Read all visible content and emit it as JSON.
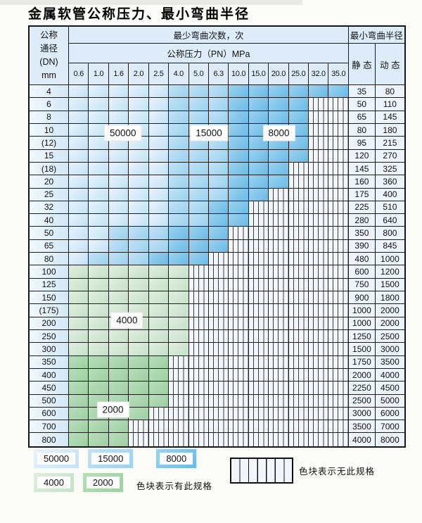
{
  "title": "金属软管公称压力、最小弯曲半径",
  "table": {
    "header": {
      "dn_lines": [
        "公称",
        "通径",
        "(DN)",
        "mm"
      ],
      "cycles_title": "最少弯曲次数，次",
      "pressure_title": "公称压力（PN）MPa",
      "pressure_cols": [
        "0.6",
        "1.0",
        "1.6",
        "2.0",
        "2.5",
        "4.0",
        "5.0",
        "6.3",
        "10.0",
        "15.0",
        "20.0",
        "25.0",
        "32.0",
        "35.0"
      ],
      "radius_title": "最小弯曲半径",
      "static_label": "静 态",
      "dynamic_label": "动 态"
    },
    "rows": [
      {
        "dn": "4",
        "blue": [
          5,
          3,
          6
        ],
        "static": "35",
        "dynamic": "80"
      },
      {
        "dn": "6",
        "blue": [
          5,
          3,
          4
        ],
        "static": "50",
        "dynamic": "110"
      },
      {
        "dn": "8",
        "blue": [
          5,
          3,
          4
        ],
        "static": "65",
        "dynamic": "145"
      },
      {
        "dn": "10",
        "blue": [
          5,
          3,
          4
        ],
        "static": "80",
        "dynamic": "180"
      },
      {
        "dn": "(12)",
        "blue": [
          5,
          3,
          4
        ],
        "static": "95",
        "dynamic": "215"
      },
      {
        "dn": "15",
        "blue": [
          5,
          3,
          4
        ],
        "static": "120",
        "dynamic": "270"
      },
      {
        "dn": "(18)",
        "blue": [
          5,
          3,
          3
        ],
        "static": "145",
        "dynamic": "325"
      },
      {
        "dn": "20",
        "blue": [
          5,
          3,
          3
        ],
        "static": "160",
        "dynamic": "360"
      },
      {
        "dn": "25",
        "blue": [
          5,
          3,
          2
        ],
        "static": "175",
        "dynamic": "400"
      },
      {
        "dn": "32",
        "blue": [
          5,
          2,
          2
        ],
        "static": "225",
        "dynamic": "510"
      },
      {
        "dn": "40",
        "blue": [
          5,
          2,
          2
        ],
        "static": "280",
        "dynamic": "640"
      },
      {
        "dn": "50",
        "blue": [
          2,
          3,
          3
        ],
        "static": "350",
        "dynamic": "800"
      },
      {
        "dn": "65",
        "blue": [
          2,
          3,
          3
        ],
        "static": "390",
        "dynamic": "845"
      },
      {
        "dn": "80",
        "blue": [
          1,
          3,
          3
        ],
        "static": "480",
        "dynamic": "1000"
      },
      {
        "dn": "100",
        "green": [
          "g4",
          6
        ],
        "static": "600",
        "dynamic": "1200"
      },
      {
        "dn": "125",
        "green": [
          "g4",
          6
        ],
        "static": "750",
        "dynamic": "1500"
      },
      {
        "dn": "150",
        "green": [
          "g4",
          6
        ],
        "static": "900",
        "dynamic": "1800"
      },
      {
        "dn": "(175)",
        "green": [
          "g4",
          6
        ],
        "static": "1000",
        "dynamic": "2000"
      },
      {
        "dn": "200",
        "green": [
          "g4",
          6
        ],
        "static": "1000",
        "dynamic": "2000"
      },
      {
        "dn": "250",
        "green": [
          "g4",
          6
        ],
        "static": "1250",
        "dynamic": "2500"
      },
      {
        "dn": "300",
        "green": [
          "g4",
          6
        ],
        "static": "1500",
        "dynamic": "3000"
      },
      {
        "dn": "350",
        "green": [
          "g2",
          5
        ],
        "static": "1750",
        "dynamic": "3500"
      },
      {
        "dn": "400",
        "green": [
          "g2",
          5
        ],
        "static": "2000",
        "dynamic": "4000"
      },
      {
        "dn": "450",
        "green": [
          "g2",
          5
        ],
        "static": "2250",
        "dynamic": "4500"
      },
      {
        "dn": "500",
        "green": [
          "g2",
          5
        ],
        "static": "2500",
        "dynamic": "5000"
      },
      {
        "dn": "600",
        "green": [
          "g2",
          4
        ],
        "static": "3000",
        "dynamic": "6000"
      },
      {
        "dn": "700",
        "green": [
          "g2",
          3
        ],
        "static": "3500",
        "dynamic": "7000"
      },
      {
        "dn": "800",
        "green": [
          "g2",
          3
        ],
        "static": "4000",
        "dynamic": "8000"
      }
    ],
    "labels": [
      {
        "text": "50000",
        "col": 2.7,
        "row": 3.7
      },
      {
        "text": "15000",
        "col": 7.0,
        "row": 3.7
      },
      {
        "text": "8000",
        "col": 10.5,
        "row": 3.7
      },
      {
        "text": "4000",
        "col": 2.9,
        "row": 18.25
      },
      {
        "text": "2000",
        "col": 2.2,
        "row": 25.15
      }
    ]
  },
  "legend": {
    "specs_row1": [
      {
        "value": "50000",
        "family": "lb"
      },
      {
        "value": "15000",
        "family": "mb"
      },
      {
        "value": "8000",
        "family": "db"
      }
    ],
    "specs_row2": [
      {
        "value": "4000",
        "family": "g4"
      },
      {
        "value": "2000",
        "family": "g2"
      }
    ],
    "has_spec_text": "色块表示有此规格",
    "no_spec_text": "色块表示无此规格"
  },
  "colors": {
    "blue_light_top": "#e8f3fc",
    "blue_light_bot": "#c3e2f5",
    "blue_mid_top": "#c2e2f6",
    "blue_mid_bot": "#9bd1ef",
    "blue_dark_top": "#9cd2f0",
    "blue_dark_bot": "#6bbae6",
    "green_light_top": "#e0eee0",
    "green_light_bot": "#c6e1c8",
    "green_dark_top": "#b9dcbb",
    "green_dark_bot": "#9dd1a2",
    "hatch_bg": "#f2f6fb",
    "grid_line": "#1d1d1d",
    "header_bg": "#ddecf8",
    "radius_bg": "#edf3fa",
    "dn_left": "#f2f8fd",
    "dn_right": "#d3e8f6"
  }
}
